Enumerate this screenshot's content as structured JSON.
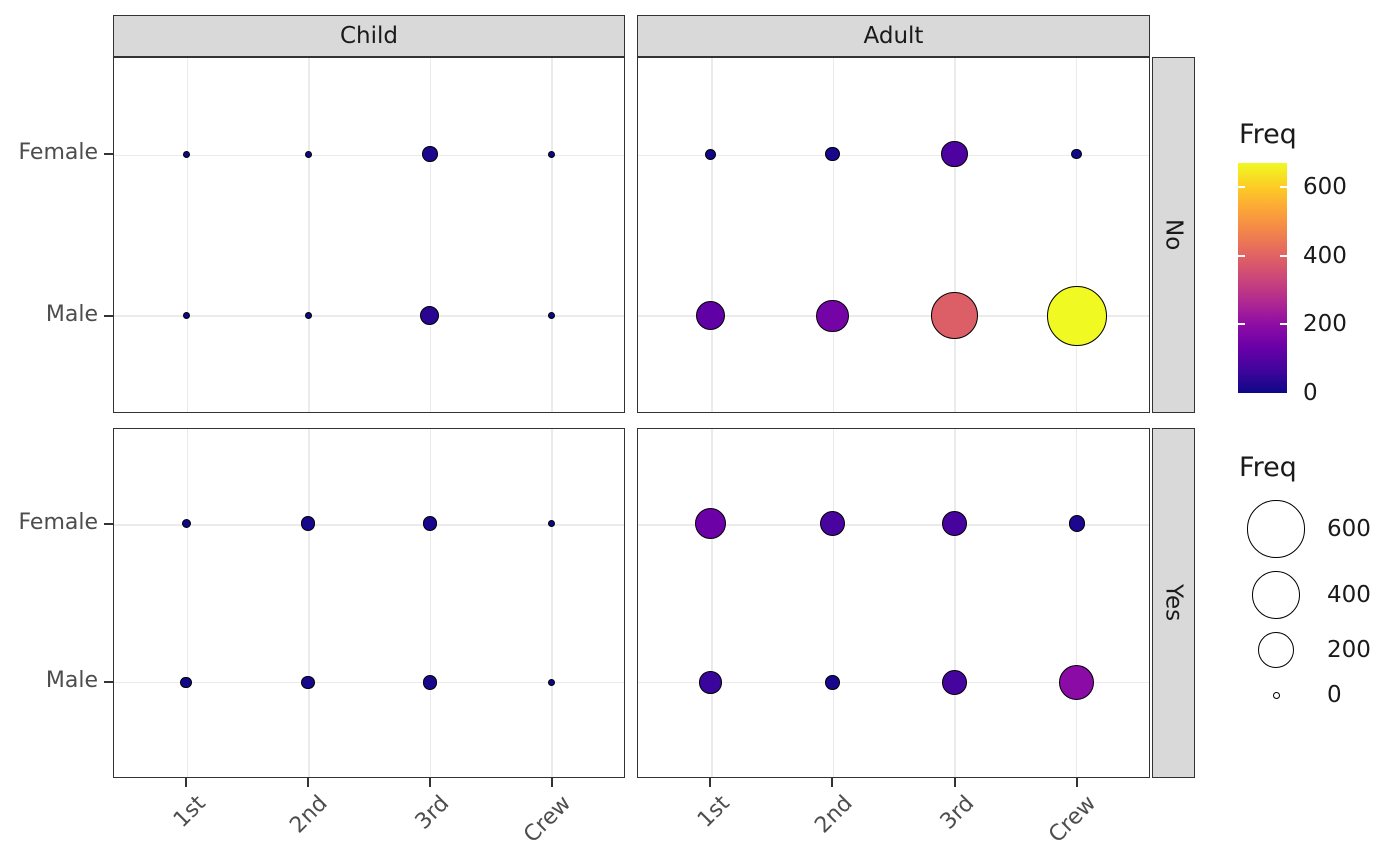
{
  "figure": {
    "background": "#ffffff",
    "panel_border_color": "#333333",
    "grid_color": "#ebebeb",
    "strip_background": "#d9d9d9",
    "strip_text_color": "#1a1a1a",
    "axis_text_color": "#4d4d4d",
    "tick_color": "#333333",
    "bubble_stroke_color": "#000000"
  },
  "facets": {
    "col_labels": [
      "Child",
      "Adult"
    ],
    "row_labels": [
      "No",
      "Yes"
    ]
  },
  "chart_data": {
    "type": "scatter",
    "subtype": "faceted-bubble",
    "x_categories": [
      "1st",
      "2nd",
      "3rd",
      "Crew"
    ],
    "y_categories": [
      "Female",
      "Male"
    ],
    "facet_columns": [
      "Child",
      "Adult"
    ],
    "facet_rows": [
      "No",
      "Yes"
    ],
    "grid": true,
    "legend_position": "right",
    "size_scale": {
      "d0": 7,
      "dmax": 60,
      "vmax": 670
    },
    "color_scale": {
      "name": "plasma",
      "max": 670,
      "palette": [
        "#0d0887",
        "#41049d",
        "#6a00a8",
        "#8f0da4",
        "#b12a90",
        "#cc4778",
        "#e16462",
        "#f2844b",
        "#fca636",
        "#fcce25",
        "#f0f921"
      ]
    },
    "points": [
      {
        "class": "1st",
        "sex": "Female",
        "age": "Child",
        "survived": "No",
        "freq": 0
      },
      {
        "class": "2nd",
        "sex": "Female",
        "age": "Child",
        "survived": "No",
        "freq": 0
      },
      {
        "class": "3rd",
        "sex": "Female",
        "age": "Child",
        "survived": "No",
        "freq": 17
      },
      {
        "class": "Crew",
        "sex": "Female",
        "age": "Child",
        "survived": "No",
        "freq": 0
      },
      {
        "class": "1st",
        "sex": "Male",
        "age": "Child",
        "survived": "No",
        "freq": 0
      },
      {
        "class": "2nd",
        "sex": "Male",
        "age": "Child",
        "survived": "No",
        "freq": 0
      },
      {
        "class": "3rd",
        "sex": "Male",
        "age": "Child",
        "survived": "No",
        "freq": 35
      },
      {
        "class": "Crew",
        "sex": "Male",
        "age": "Child",
        "survived": "No",
        "freq": 0
      },
      {
        "class": "1st",
        "sex": "Female",
        "age": "Adult",
        "survived": "No",
        "freq": 4
      },
      {
        "class": "2nd",
        "sex": "Female",
        "age": "Adult",
        "survived": "No",
        "freq": 13
      },
      {
        "class": "3rd",
        "sex": "Female",
        "age": "Adult",
        "survived": "No",
        "freq": 89
      },
      {
        "class": "Crew",
        "sex": "Female",
        "age": "Adult",
        "survived": "No",
        "freq": 3
      },
      {
        "class": "1st",
        "sex": "Male",
        "age": "Adult",
        "survived": "No",
        "freq": 118
      },
      {
        "class": "2nd",
        "sex": "Male",
        "age": "Adult",
        "survived": "No",
        "freq": 154
      },
      {
        "class": "3rd",
        "sex": "Male",
        "age": "Adult",
        "survived": "No",
        "freq": 387
      },
      {
        "class": "Crew",
        "sex": "Male",
        "age": "Adult",
        "survived": "No",
        "freq": 670
      },
      {
        "class": "1st",
        "sex": "Female",
        "age": "Child",
        "survived": "Yes",
        "freq": 1
      },
      {
        "class": "2nd",
        "sex": "Female",
        "age": "Child",
        "survived": "Yes",
        "freq": 13
      },
      {
        "class": "3rd",
        "sex": "Female",
        "age": "Child",
        "survived": "Yes",
        "freq": 14
      },
      {
        "class": "Crew",
        "sex": "Female",
        "age": "Child",
        "survived": "Yes",
        "freq": 0
      },
      {
        "class": "1st",
        "sex": "Male",
        "age": "Child",
        "survived": "Yes",
        "freq": 5
      },
      {
        "class": "2nd",
        "sex": "Male",
        "age": "Child",
        "survived": "Yes",
        "freq": 11
      },
      {
        "class": "3rd",
        "sex": "Male",
        "age": "Child",
        "survived": "Yes",
        "freq": 13
      },
      {
        "class": "Crew",
        "sex": "Male",
        "age": "Child",
        "survived": "Yes",
        "freq": 0
      },
      {
        "class": "1st",
        "sex": "Female",
        "age": "Adult",
        "survived": "Yes",
        "freq": 140
      },
      {
        "class": "2nd",
        "sex": "Female",
        "age": "Adult",
        "survived": "Yes",
        "freq": 80
      },
      {
        "class": "3rd",
        "sex": "Female",
        "age": "Adult",
        "survived": "Yes",
        "freq": 76
      },
      {
        "class": "Crew",
        "sex": "Female",
        "age": "Adult",
        "survived": "Yes",
        "freq": 20
      },
      {
        "class": "1st",
        "sex": "Male",
        "age": "Adult",
        "survived": "Yes",
        "freq": 57
      },
      {
        "class": "2nd",
        "sex": "Male",
        "age": "Adult",
        "survived": "Yes",
        "freq": 14
      },
      {
        "class": "3rd",
        "sex": "Male",
        "age": "Adult",
        "survived": "Yes",
        "freq": 75
      },
      {
        "class": "Crew",
        "sex": "Male",
        "age": "Adult",
        "survived": "Yes",
        "freq": 192
      }
    ]
  },
  "legends": {
    "color": {
      "title": "Freq",
      "ticks": [
        600,
        400,
        200,
        0
      ]
    },
    "size": {
      "title": "Freq",
      "ticks": [
        600,
        400,
        200,
        0
      ]
    }
  }
}
